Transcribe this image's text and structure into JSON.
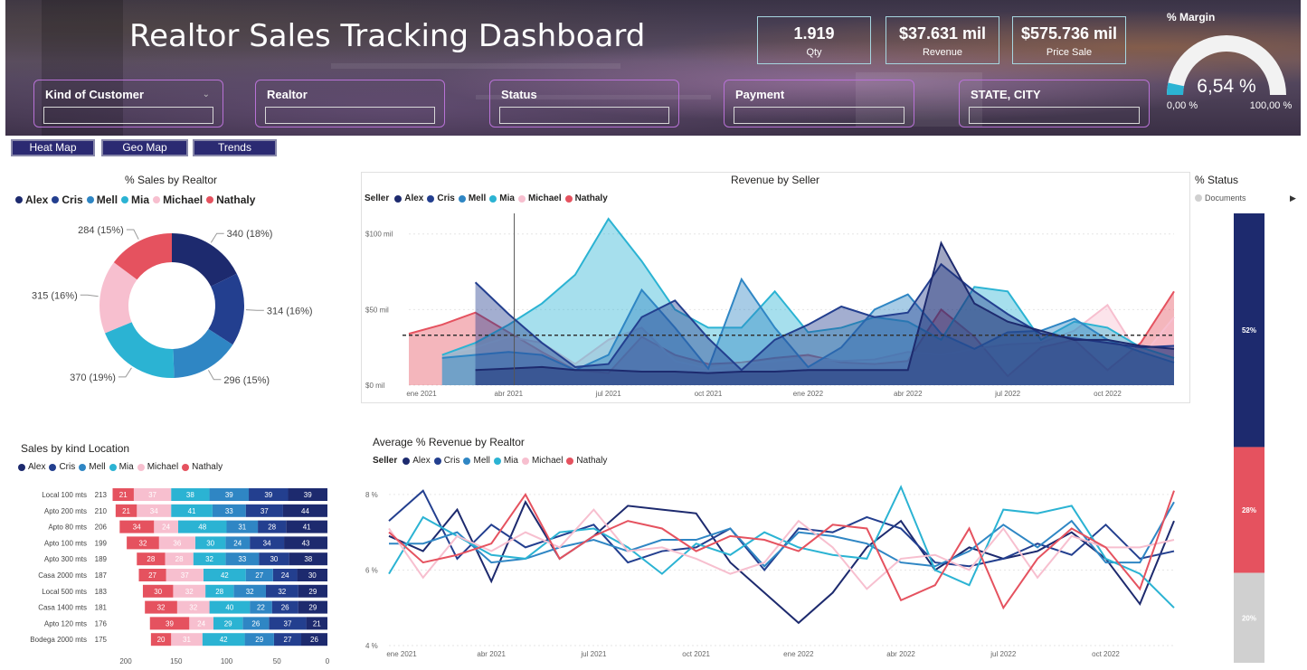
{
  "header": {
    "title": "Realtor Sales Tracking Dashboard",
    "kpis": [
      {
        "value": "1.919",
        "label": "Qty"
      },
      {
        "value": "$37.631 mil",
        "label": "Revenue"
      },
      {
        "value": "$575.736 mil",
        "label": "Price Sale"
      }
    ],
    "slicers": [
      "Kind of Customer",
      "Realtor",
      "Status",
      "Payment",
      "STATE, CITY"
    ],
    "gauge": {
      "title": "% Margin",
      "value_label": "6,54 %",
      "value": 0.0654,
      "min_label": "0,00 %",
      "max_label": "100,00 %"
    }
  },
  "nav": {
    "buttons": [
      "Heat Map",
      "Geo Map",
      "Trends"
    ]
  },
  "colors": {
    "Alex": "#1d2a6e",
    "Cris": "#233f8f",
    "Mell": "#2f86c4",
    "Mia": "#2bb3d3",
    "Michael": "#f7bfcf",
    "Nathaly": "#e5525f",
    "status_docs": "#d0d0d0",
    "banner_accent": "#a6d6e0",
    "slicer_border": "#b872d6"
  },
  "sellers": [
    "Alex",
    "Cris",
    "Mell",
    "Mia",
    "Michael",
    "Nathaly"
  ],
  "donut": {
    "title": "% Sales by Realtor",
    "labels": [
      "340 (18%)",
      "314 (16%)",
      "296 (15%)",
      "370 (19%)",
      "315 (16%)",
      "284 (15%)"
    ]
  },
  "revenue": {
    "title": "Revenue by Seller",
    "legend_title": "Seller"
  },
  "avg": {
    "title": "Average % Revenue by Realtor",
    "legend_title": "Seller"
  },
  "location": {
    "title": "Sales by kind Location"
  },
  "status": {
    "title": "% Status",
    "legend_label": "Documents",
    "labels": [
      "52%",
      "28%",
      "20%"
    ]
  },
  "chart_data": [
    {
      "type": "pie",
      "title": "% Sales by Realtor",
      "categories": [
        "Alex",
        "Cris",
        "Mell",
        "Mia",
        "Michael",
        "Nathaly"
      ],
      "values": [
        340,
        314,
        296,
        370,
        315,
        284
      ],
      "legend": "top"
    },
    {
      "type": "area",
      "title": "Revenue by Seller",
      "xlabel": "",
      "ylabel": "",
      "x_ticks": [
        "ene 2021",
        "abr 2021",
        "jul 2021",
        "oct 2021",
        "ene 2022",
        "abr 2022",
        "jul 2022",
        "oct 2022"
      ],
      "y_ticks": [
        "$0 mil",
        "$50 mil",
        "$100 mil"
      ],
      "ylim": [
        0,
        110
      ],
      "x": [
        "2021-01",
        "2021-02",
        "2021-03",
        "2021-04",
        "2021-05",
        "2021-06",
        "2021-07",
        "2021-08",
        "2021-09",
        "2021-10",
        "2021-11",
        "2021-12",
        "2022-01",
        "2022-02",
        "2022-03",
        "2022-04",
        "2022-05",
        "2022-06",
        "2022-07",
        "2022-08",
        "2022-09",
        "2022-10",
        "2022-11",
        "2022-12"
      ],
      "series": [
        {
          "name": "Alex",
          "values": [
            null,
            null,
            10,
            11,
            12,
            10,
            10,
            9,
            9,
            8,
            9,
            9,
            10,
            10,
            10,
            10,
            94,
            54,
            42,
            36,
            30,
            30,
            26,
            24
          ]
        },
        {
          "name": "Cris",
          "values": [
            null,
            null,
            68,
            47,
            28,
            12,
            14,
            45,
            56,
            31,
            10,
            30,
            40,
            52,
            45,
            48,
            80,
            62,
            47,
            34,
            31,
            28,
            25,
            26
          ]
        },
        {
          "name": "Mell",
          "values": [
            null,
            18,
            20,
            22,
            20,
            10,
            20,
            63,
            38,
            11,
            70,
            38,
            12,
            25,
            50,
            60,
            34,
            24,
            35,
            36,
            44,
            30,
            22,
            15
          ]
        },
        {
          "name": "Mia",
          "values": [
            null,
            20,
            28,
            40,
            54,
            73,
            110,
            82,
            50,
            38,
            38,
            62,
            35,
            38,
            45,
            42,
            30,
            65,
            62,
            30,
            42,
            38,
            25,
            18
          ]
        },
        {
          "name": "Michael",
          "values": [
            null,
            20,
            25,
            32,
            28,
            14,
            30,
            38,
            16,
            11,
            14,
            16,
            18,
            16,
            17,
            22,
            20,
            24,
            27,
            28,
            36,
            53,
            18,
            45
          ]
        },
        {
          "name": "Nathaly",
          "values": [
            34,
            40,
            48,
            35,
            22,
            10,
            8,
            32,
            20,
            14,
            15,
            18,
            20,
            15,
            14,
            16,
            50,
            32,
            6,
            25,
            30,
            10,
            28,
            62
          ]
        }
      ],
      "average_line": 33,
      "legend": "top-left"
    },
    {
      "type": "line",
      "title": "Average % Revenue by Realtor",
      "x_ticks": [
        "ene 2021",
        "abr 2021",
        "jul 2021",
        "oct 2021",
        "ene 2022",
        "abr 2022",
        "jul 2022",
        "oct 2022"
      ],
      "y_ticks": [
        "4 %",
        "6 %",
        "8 %"
      ],
      "ylim": [
        4,
        8.5
      ],
      "x": [
        "2021-01",
        "2021-02",
        "2021-03",
        "2021-04",
        "2021-05",
        "2021-06",
        "2021-07",
        "2021-08",
        "2021-09",
        "2021-10",
        "2021-11",
        "2021-12",
        "2022-01",
        "2022-02",
        "2022-03",
        "2022-04",
        "2022-05",
        "2022-06",
        "2022-07",
        "2022-08",
        "2022-09",
        "2022-10",
        "2022-11",
        "2022-12"
      ],
      "series": [
        {
          "name": "Alex",
          "values": [
            6.9,
            6.5,
            7.6,
            5.7,
            7.8,
            6.3,
            6.9,
            7.7,
            7.6,
            7.5,
            6.2,
            5.4,
            4.6,
            5.4,
            6.6,
            7.3,
            6.0,
            6.6,
            6.3,
            6.5,
            7.0,
            6.3,
            5.1,
            7.3
          ]
        },
        {
          "name": "Cris",
          "values": [
            7.3,
            8.1,
            6.3,
            7.2,
            6.6,
            6.9,
            7.2,
            6.2,
            6.5,
            6.6,
            7.1,
            6.0,
            7.1,
            7.0,
            7.4,
            7.1,
            6.2,
            6.1,
            6.3,
            6.7,
            6.4,
            7.2,
            6.3,
            6.5
          ]
        },
        {
          "name": "Mell",
          "values": [
            6.7,
            6.7,
            7.0,
            6.2,
            6.3,
            6.6,
            6.8,
            6.5,
            6.8,
            6.8,
            7.1,
            6.1,
            7.0,
            6.9,
            6.7,
            6.2,
            6.1,
            6.5,
            7.2,
            6.6,
            7.3,
            6.2,
            6.2,
            7.8
          ]
        },
        {
          "name": "Mia",
          "values": [
            5.9,
            7.4,
            6.9,
            6.4,
            6.3,
            7.0,
            7.1,
            6.6,
            5.9,
            6.7,
            6.4,
            7.0,
            6.6,
            6.4,
            6.3,
            8.2,
            6.0,
            5.6,
            7.6,
            7.5,
            7.7,
            6.3,
            5.9,
            5.0
          ]
        },
        {
          "name": "Michael",
          "values": [
            7.1,
            5.8,
            6.9,
            6.5,
            7.0,
            6.6,
            7.6,
            6.5,
            6.6,
            6.3,
            5.9,
            6.2,
            7.3,
            6.6,
            5.5,
            6.3,
            6.4,
            6.0,
            7.1,
            5.8,
            6.9,
            6.6,
            6.6,
            6.8
          ]
        },
        {
          "name": "Nathaly",
          "values": [
            7.0,
            6.2,
            6.4,
            6.7,
            8.0,
            6.3,
            6.9,
            7.3,
            7.1,
            6.5,
            6.9,
            6.8,
            6.5,
            7.2,
            7.1,
            5.2,
            5.6,
            7.1,
            5.0,
            6.3,
            7.1,
            6.6,
            5.5,
            8.1
          ]
        }
      ],
      "legend": "top-left"
    },
    {
      "type": "bar",
      "title": "Sales by kind Location",
      "orientation": "horizontal-stacked",
      "categories": [
        "Local 100 mts",
        "Apto 200 mts",
        "Apto 80 mts",
        "Apto 100 mts",
        "Apto 300 mts",
        "Casa 2000 mts",
        "Local 500 mts",
        "Casa 1400 mts",
        "Apto 120 mts",
        "Bodega 2000 mts"
      ],
      "totals": [
        213,
        210,
        206,
        199,
        189,
        187,
        183,
        181,
        176,
        175
      ],
      "series": [
        {
          "name": "Nathaly",
          "values": [
            21,
            21,
            34,
            32,
            28,
            27,
            30,
            32,
            39,
            20
          ]
        },
        {
          "name": "Michael",
          "values": [
            37,
            34,
            24,
            36,
            28,
            37,
            32,
            32,
            24,
            31
          ]
        },
        {
          "name": "Mia",
          "values": [
            38,
            41,
            48,
            30,
            32,
            42,
            28,
            40,
            29,
            42
          ]
        },
        {
          "name": "Mell",
          "values": [
            39,
            33,
            31,
            24,
            33,
            27,
            32,
            22,
            26,
            29
          ]
        },
        {
          "name": "Cris",
          "values": [
            39,
            37,
            28,
            34,
            30,
            24,
            32,
            26,
            37,
            27
          ]
        },
        {
          "name": "Alex",
          "values": [
            39,
            44,
            41,
            43,
            38,
            30,
            29,
            29,
            21,
            26
          ]
        }
      ],
      "x_ticks": [
        "200",
        "150",
        "100",
        "50",
        "0"
      ],
      "xlim": [
        0,
        225
      ]
    },
    {
      "type": "bar",
      "title": "% Status",
      "orientation": "vertical-stacked",
      "values": [
        52,
        28,
        20
      ],
      "labels": [
        "52%",
        "28%",
        "20%"
      ],
      "legend": "top"
    }
  ]
}
